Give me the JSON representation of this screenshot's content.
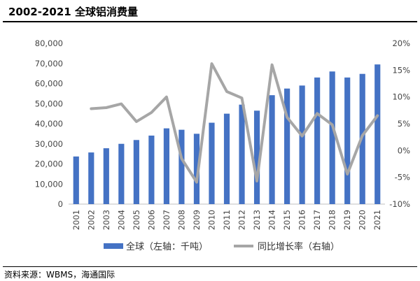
{
  "title": "2002-2021 全球铝消费量",
  "source": "资料来源：WBMS，海通国际",
  "chart_data": {
    "type": "bar+line",
    "categories": [
      "2001",
      "2002",
      "2003",
      "2004",
      "2005",
      "2006",
      "2007",
      "2008",
      "2009",
      "2010",
      "2011",
      "2012",
      "2013",
      "2014",
      "2015",
      "2016",
      "2017",
      "2018",
      "2019",
      "2020",
      "2021"
    ],
    "series": [
      {
        "name": "全球（左轴：千吨）",
        "type": "bar",
        "axis": "left",
        "color": "#4472C4",
        "values": [
          23700,
          25700,
          27800,
          30000,
          31900,
          34100,
          37700,
          37000,
          35000,
          40500,
          45000,
          49500,
          46500,
          54200,
          57500,
          59000,
          63000,
          66000,
          63000,
          64800,
          69500
        ]
      },
      {
        "name": "同比增长率（右轴）",
        "type": "line",
        "axis": "right",
        "color": "#A6A6A6",
        "values": [
          null,
          7.8,
          8.0,
          8.7,
          5.4,
          7.1,
          10.0,
          -1.5,
          -5.9,
          16.2,
          11.0,
          9.8,
          -5.7,
          16.0,
          6.2,
          2.7,
          6.9,
          4.8,
          -4.4,
          2.8,
          6.5
        ]
      }
    ],
    "y_left": {
      "lim": [
        0,
        80000
      ],
      "ticks": [
        "0",
        "10,000",
        "20,000",
        "30,000",
        "40,000",
        "50,000",
        "60,000",
        "70,000",
        "80,000"
      ]
    },
    "y_right": {
      "lim": [
        -10,
        20
      ],
      "ticks": [
        "-10%",
        "-5%",
        "0%",
        "5%",
        "10%",
        "15%",
        "20%"
      ]
    },
    "grid": false,
    "legend_position": "bottom"
  }
}
